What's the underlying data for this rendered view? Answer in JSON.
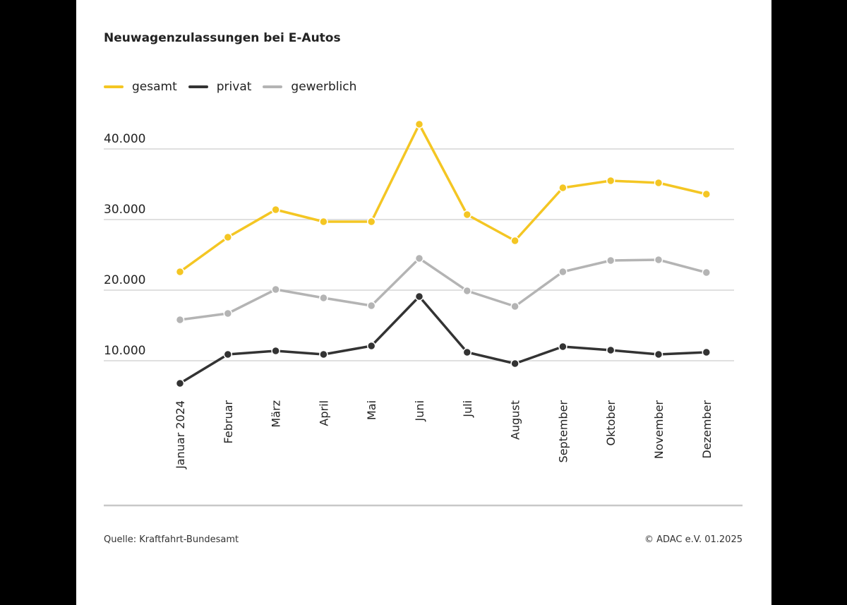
{
  "chart_data": {
    "type": "line",
    "title": "Neuwagenzulassungen bei E-Autos",
    "categories": [
      "Januar 2024",
      "Februar",
      "März",
      "April",
      "Mai",
      "Juni",
      "Juli",
      "August",
      "September",
      "Oktober",
      "November",
      "Dezember"
    ],
    "series": [
      {
        "name": "gesamt",
        "color": "#f4c623",
        "values": [
          22600,
          27500,
          31400,
          29700,
          29700,
          43500,
          30700,
          27000,
          34500,
          35500,
          35200,
          33600
        ]
      },
      {
        "name": "privat",
        "color": "#333333",
        "values": [
          6800,
          10900,
          11400,
          10900,
          12100,
          19100,
          11200,
          9600,
          12000,
          11500,
          10900,
          11200
        ]
      },
      {
        "name": "gewerblich",
        "color": "#b4b4b4",
        "values": [
          15800,
          16700,
          20100,
          18900,
          17800,
          24500,
          19900,
          17700,
          22600,
          24200,
          24300,
          22500
        ]
      }
    ],
    "yticks": [
      10000,
      20000,
      30000,
      40000
    ],
    "ytick_labels": [
      "10.000",
      "20.000",
      "30.000",
      "40.000"
    ],
    "grid": true,
    "legend": "top-left",
    "xlabel": "",
    "ylabel": ""
  },
  "footer": {
    "source": "Quelle: Kraftfahrt-Bundesamt",
    "copyright": "© ADAC e.V. 01.2025"
  }
}
